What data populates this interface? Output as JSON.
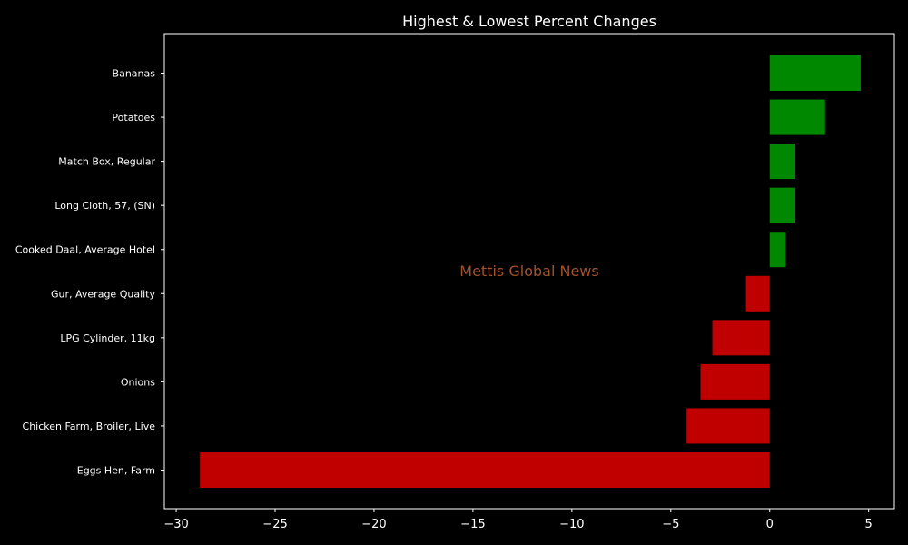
{
  "chart_data": {
    "type": "bar",
    "orientation": "horizontal",
    "title": "Highest & Lowest Percent Changes",
    "xlabel": "",
    "ylabel": "",
    "xlim": [
      -30.6,
      6.3
    ],
    "xticks": [
      -30,
      -25,
      -20,
      -15,
      -10,
      -5,
      0,
      5
    ],
    "xtick_labels": [
      "−30",
      "−25",
      "−20",
      "−15",
      "−10",
      "−5",
      "0",
      "5"
    ],
    "categories": [
      "Bananas",
      "Potatoes",
      "Match Box, Regular",
      "Long Cloth, 57, (SN)",
      "Cooked Daal, Average Hotel",
      "Gur, Average Quality",
      "LPG Cylinder, 11kg",
      "Onions",
      "Chicken Farm, Broiler, Live",
      "Eggs Hen, Farm"
    ],
    "values": [
      4.6,
      2.8,
      1.3,
      1.3,
      0.8,
      -1.2,
      -2.9,
      -3.5,
      -4.2,
      -28.8
    ],
    "grid": false,
    "colors": {
      "positive": "#008800",
      "negative": "#c00000",
      "background": "#000000",
      "axes": "#ffffff",
      "text": "#ffffff",
      "watermark": "#a0522d"
    },
    "annotation": "Mettis Global News"
  }
}
